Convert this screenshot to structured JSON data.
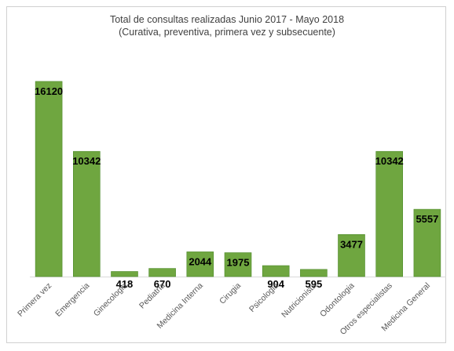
{
  "chart_data": {
    "type": "bar",
    "title": "Total de consultas realizadas Junio 2017 - Mayo 2018",
    "subtitle": "(Curativa, preventiva, primera vez y subsecuente)",
    "categories": [
      "Primera vez",
      "Emergencia",
      "Ginecologia",
      "Pediatria",
      "Medicina Interna",
      "Cirugia",
      "Psicologia",
      "Nutricionista",
      "Odontologia",
      "Otros especialistas",
      "Medicina General"
    ],
    "values": [
      16120,
      10342,
      418,
      670,
      2044,
      1975,
      904,
      595,
      3477,
      10342,
      5557
    ],
    "value_labels": [
      "16120",
      "10342",
      "418",
      "670",
      "2044",
      "1975",
      "904",
      "595",
      "3477",
      "10342",
      "5557"
    ],
    "ylim": [
      0,
      16500
    ],
    "grid": false,
    "legend": "none",
    "bar_color": "#6fa640",
    "bar_edge_color": "#4e8a2a",
    "axis_color": "#d9d9d9",
    "label_color": "#000000",
    "category_color": "#595959"
  }
}
